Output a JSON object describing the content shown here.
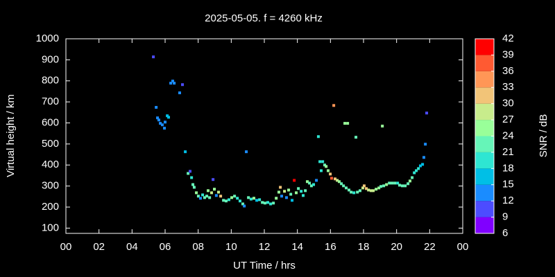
{
  "chart_data": {
    "type": "scatter",
    "title": "2025-05-05. f = 4260 kHz",
    "xlabel": "UT Time / hrs",
    "ylabel": "Virtual height / km",
    "xlim": [
      0,
      24
    ],
    "xticks": [
      {
        "value": 0,
        "label": "00"
      },
      {
        "value": 2,
        "label": "02"
      },
      {
        "value": 4,
        "label": "04"
      },
      {
        "value": 6,
        "label": "06"
      },
      {
        "value": 8,
        "label": "08"
      },
      10,
      12,
      14,
      16,
      18,
      20,
      22,
      {
        "value": 24,
        "label": "00"
      }
    ],
    "ylim": [
      75,
      1000
    ],
    "yticks": [
      100,
      200,
      300,
      400,
      500,
      600,
      700,
      800,
      900,
      1000
    ],
    "colorbar": {
      "label": "SNR / dB",
      "lim": [
        6,
        42
      ],
      "ticks": [
        6,
        9,
        12,
        15,
        18,
        21,
        24,
        27,
        30,
        33,
        36,
        39,
        42
      ],
      "colors": [
        "#8000ff",
        "#4c4cff",
        "#1a8cff",
        "#00bfe6",
        "#2ee6d2",
        "#66f5b8",
        "#99ff99",
        "#c8ec8c",
        "#f2c478",
        "#ff9656",
        "#ff5a32",
        "#ff0000"
      ]
    },
    "series": [
      {
        "x": [
          5.29,
          5.46,
          5.54,
          5.62,
          5.71,
          5.83,
          5.96,
          6.0,
          6.13,
          6.21,
          6.34,
          6.46,
          6.55,
          6.88,
          7.05,
          7.22,
          7.39,
          7.51,
          7.6,
          7.68,
          7.76,
          7.89,
          8.01,
          8.14,
          8.27,
          8.39,
          8.52,
          8.6,
          8.69,
          8.81,
          8.9,
          8.98,
          9.1,
          9.23,
          9.36,
          9.53,
          9.69,
          9.86,
          10.03,
          10.2,
          10.37,
          10.53,
          10.7,
          10.79,
          10.91,
          11.04,
          11.2,
          11.37,
          11.54,
          11.71,
          11.88,
          12.04,
          12.21,
          12.38,
          12.55,
          12.72,
          12.88,
          12.97,
          13.05,
          13.22,
          13.34,
          13.47,
          13.6,
          13.68,
          13.81,
          13.93,
          14.06,
          14.23,
          14.35,
          14.48,
          14.6,
          14.73,
          14.85,
          14.98,
          15.15,
          15.27,
          15.36,
          15.44,
          15.53,
          15.65,
          15.74,
          15.86,
          15.99,
          16.07,
          16.2,
          16.28,
          16.41,
          16.53,
          16.66,
          16.79,
          16.87,
          16.95,
          17.04,
          17.12,
          17.25,
          17.42,
          17.54,
          17.63,
          17.79,
          17.96,
          18.04,
          18.17,
          18.3,
          18.46,
          18.59,
          18.76,
          18.93,
          19.05,
          19.14,
          19.22,
          19.39,
          19.56,
          19.72,
          19.89,
          20.06,
          20.18,
          20.35,
          20.52,
          20.69,
          20.81,
          20.94,
          21.07,
          21.19,
          21.32,
          21.44,
          21.57,
          21.65,
          21.74,
          21.82
        ],
        "values": [
          914,
          674,
          624,
          614,
          598,
          591,
          575,
          604,
          634,
          627,
          789,
          799,
          789,
          743,
          782,
          463,
          360,
          370,
          340,
          307,
          294,
          268,
          252,
          242,
          258,
          245,
          252,
          278,
          245,
          268,
          331,
          285,
          255,
          271,
          252,
          232,
          229,
          235,
          245,
          252,
          242,
          229,
          215,
          205,
          463,
          245,
          238,
          242,
          232,
          235,
          222,
          219,
          222,
          215,
          219,
          242,
          271,
          294,
          252,
          275,
          245,
          281,
          261,
          232,
          327,
          268,
          288,
          275,
          255,
          278,
          321,
          314,
          301,
          307,
          327,
          535,
          416,
          373,
          416,
          400,
          393,
          373,
          357,
          337,
          683,
          334,
          327,
          321,
          311,
          301,
          598,
          291,
          598,
          281,
          271,
          268,
          532,
          271,
          278,
          291,
          301,
          288,
          281,
          278,
          278,
          285,
          291,
          298,
          585,
          301,
          307,
          314,
          314,
          314,
          314,
          304,
          301,
          301,
          311,
          324,
          340,
          363,
          373,
          383,
          396,
          403,
          436,
          499,
          647
        ],
        "snr": [
          11,
          12,
          14,
          13,
          14,
          13,
          12,
          14,
          16,
          17,
          13,
          14,
          13,
          12,
          11,
          16,
          22,
          11,
          18,
          22,
          23,
          24,
          22,
          13,
          20,
          22,
          21,
          26,
          23,
          28,
          11,
          25,
          13,
          27,
          31,
          22,
          21,
          20,
          24,
          22,
          20,
          18,
          21,
          14,
          12,
          22,
          20,
          24,
          16,
          20,
          21,
          22,
          20,
          19,
          22,
          24,
          26,
          31,
          13,
          27,
          13,
          26,
          21,
          17,
          40,
          24,
          23,
          20,
          19,
          22,
          25,
          21,
          22,
          20,
          13,
          20,
          18,
          19,
          20,
          22,
          24,
          26,
          31,
          37,
          33,
          32,
          28,
          24,
          23,
          22,
          26,
          21,
          25,
          22,
          21,
          20,
          22,
          21,
          23,
          28,
          31,
          30,
          27,
          28,
          29,
          25,
          24,
          23,
          26,
          22,
          24,
          22,
          21,
          23,
          20,
          22,
          21,
          23,
          22,
          24,
          23,
          20,
          19,
          18,
          17,
          16,
          14,
          12,
          11
        ]
      }
    ]
  }
}
